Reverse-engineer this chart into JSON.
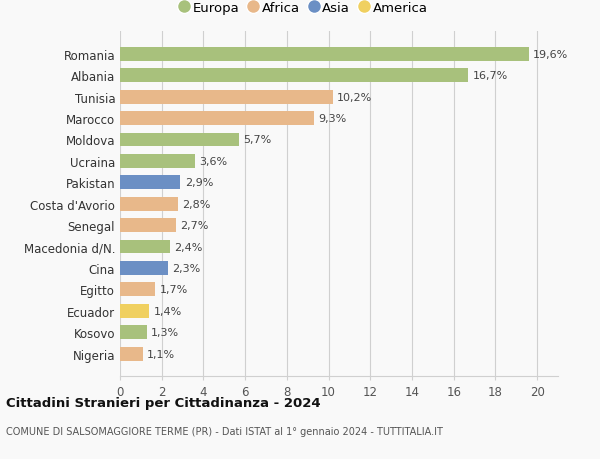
{
  "categories": [
    "Romania",
    "Albania",
    "Tunisia",
    "Marocco",
    "Moldova",
    "Ucraina",
    "Pakistan",
    "Costa d'Avorio",
    "Senegal",
    "Macedonia d/N.",
    "Cina",
    "Egitto",
    "Ecuador",
    "Kosovo",
    "Nigeria"
  ],
  "values": [
    19.6,
    16.7,
    10.2,
    9.3,
    5.7,
    3.6,
    2.9,
    2.8,
    2.7,
    2.4,
    2.3,
    1.7,
    1.4,
    1.3,
    1.1
  ],
  "labels": [
    "19,6%",
    "16,7%",
    "10,2%",
    "9,3%",
    "5,7%",
    "3,6%",
    "2,9%",
    "2,8%",
    "2,7%",
    "2,4%",
    "2,3%",
    "1,7%",
    "1,4%",
    "1,3%",
    "1,1%"
  ],
  "continents": [
    "Europa",
    "Europa",
    "Africa",
    "Africa",
    "Europa",
    "Europa",
    "Asia",
    "Africa",
    "Africa",
    "Europa",
    "Asia",
    "Africa",
    "America",
    "Europa",
    "Africa"
  ],
  "continent_colors": {
    "Europa": "#a8c17c",
    "Africa": "#e8b88a",
    "Asia": "#6b8fc4",
    "America": "#f0d060"
  },
  "legend_order": [
    "Europa",
    "Africa",
    "Asia",
    "America"
  ],
  "xlim": [
    0,
    21
  ],
  "xticks": [
    0,
    2,
    4,
    6,
    8,
    10,
    12,
    14,
    16,
    18,
    20
  ],
  "title": "Cittadini Stranieri per Cittadinanza - 2024",
  "subtitle": "COMUNE DI SALSOMAGGIORE TERME (PR) - Dati ISTAT al 1° gennaio 2024 - TUTTITALIA.IT",
  "bg_color": "#f9f9f9",
  "grid_color": "#d0d0d0",
  "bar_height": 0.65
}
